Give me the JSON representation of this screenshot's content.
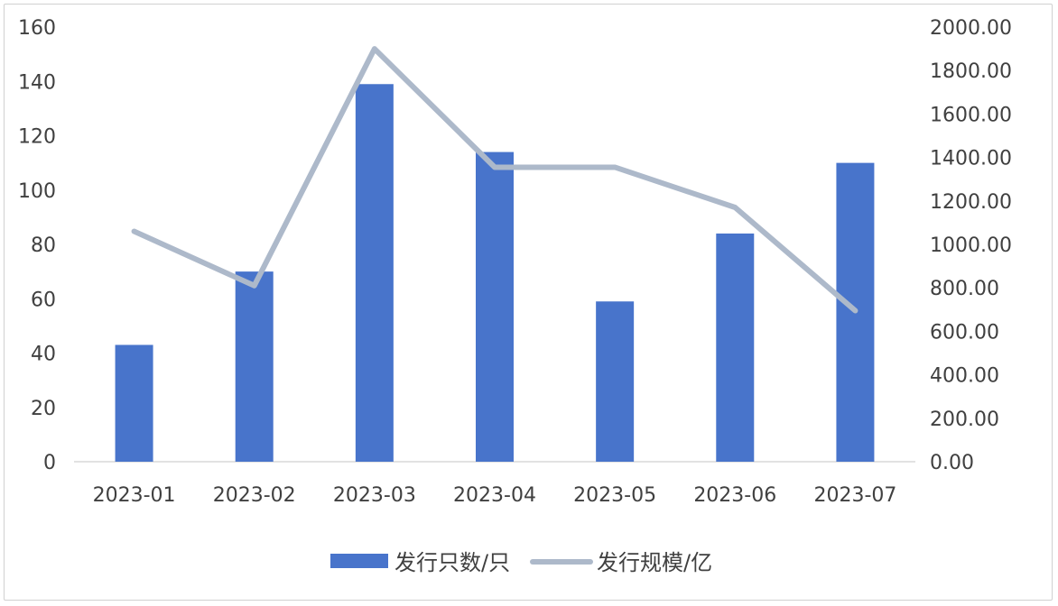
{
  "chart_data": {
    "type": "bar",
    "categories": [
      "2023-01",
      "2023-02",
      "2023-03",
      "2023-04",
      "2023-05",
      "2023-06",
      "2023-07"
    ],
    "series": [
      {
        "name": "发行只数/只",
        "type": "bar",
        "axis": "left",
        "color": "#4874cb",
        "values": [
          43,
          70,
          139,
          114,
          59,
          84,
          110
        ]
      },
      {
        "name": "发行规模/亿",
        "type": "line",
        "axis": "right",
        "color": "#adb9ca",
        "values": [
          1060,
          810,
          1900,
          1355,
          1355,
          1170,
          695
        ]
      }
    ],
    "y_left": {
      "min": 0,
      "max": 160,
      "ticks": [
        "0",
        "20",
        "40",
        "60",
        "80",
        "100",
        "120",
        "140",
        "160"
      ]
    },
    "y_right": {
      "min": 0,
      "max": 2000,
      "ticks": [
        "0.00",
        "200.00",
        "400.00",
        "600.00",
        "800.00",
        "1000.00",
        "1200.00",
        "1400.00",
        "1600.00",
        "1800.00",
        "2000.00"
      ]
    },
    "grid": false,
    "legend": "bottom"
  }
}
